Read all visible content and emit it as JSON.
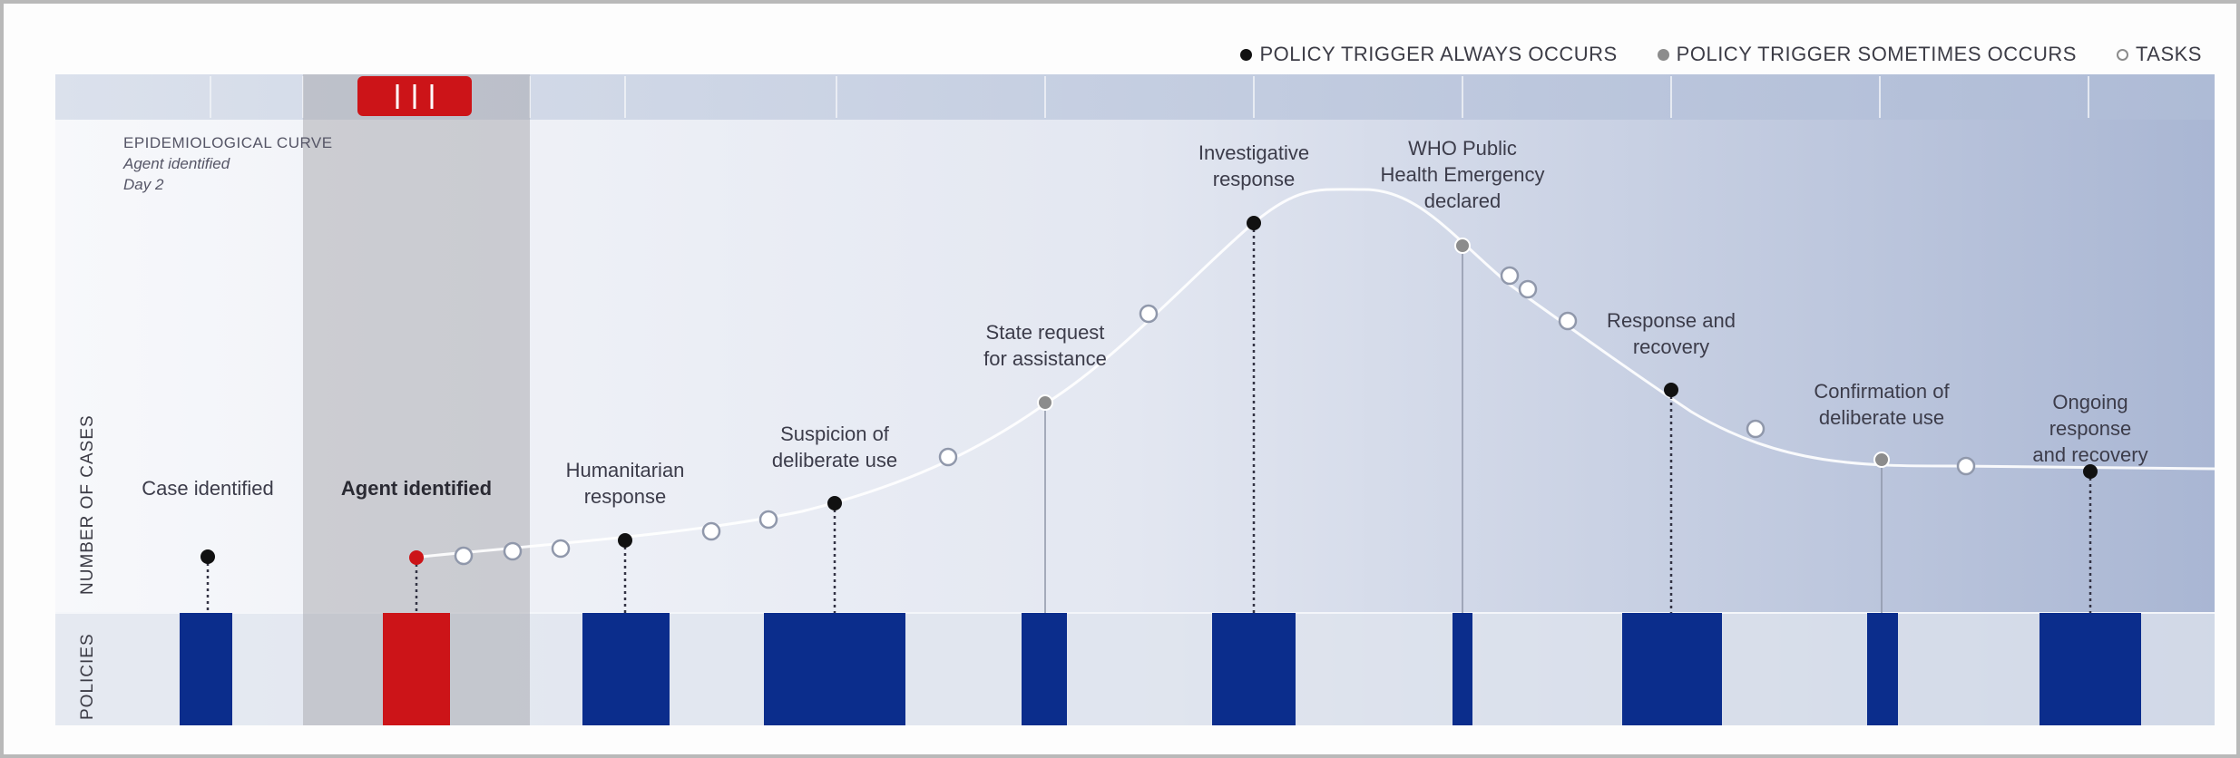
{
  "legend": {
    "always_label": "POLICY TRIGGER ALWAYS OCCURS",
    "sometimes_label": "POLICY TRIGGER SOMETIMES OCCURS",
    "tasks_label": "TASKS"
  },
  "axis": {
    "y_label": "NUMBER OF CASES",
    "policies_label": "POLICIES"
  },
  "curve": {
    "title": "EPIDEMIOLOGICAL CURVE",
    "subtitle": "Agent identified",
    "day": "Day 2"
  },
  "colors": {
    "policy_block": "#0b2d8c",
    "highlight": "#cc1418",
    "always_dot": "#111111",
    "sometimes_dot": "#8c8c8c"
  },
  "highlight_flag": "| | |",
  "milestones": [
    {
      "label": "Case identified",
      "trigger": "always",
      "selected": false
    },
    {
      "label": "Agent identified",
      "trigger": "always",
      "selected": true
    },
    {
      "label": "Humanitarian\nresponse",
      "trigger": "always",
      "selected": false
    },
    {
      "label": "Suspicion of\ndeliberate use",
      "trigger": "always",
      "selected": false
    },
    {
      "label": "State request\nfor assistance",
      "trigger": "sometimes",
      "selected": false
    },
    {
      "label": "Investigative\nresponse",
      "trigger": "always",
      "selected": false
    },
    {
      "label": "WHO Public\nHealth Emergency\ndeclared",
      "trigger": "sometimes",
      "selected": false
    },
    {
      "label": "Response and\nrecovery",
      "trigger": "always",
      "selected": false
    },
    {
      "label": "Confirmation of\ndeliberate use",
      "trigger": "sometimes",
      "selected": false
    },
    {
      "label": "Ongoing response\nand recovery",
      "trigger": "always",
      "selected": false
    }
  ]
}
